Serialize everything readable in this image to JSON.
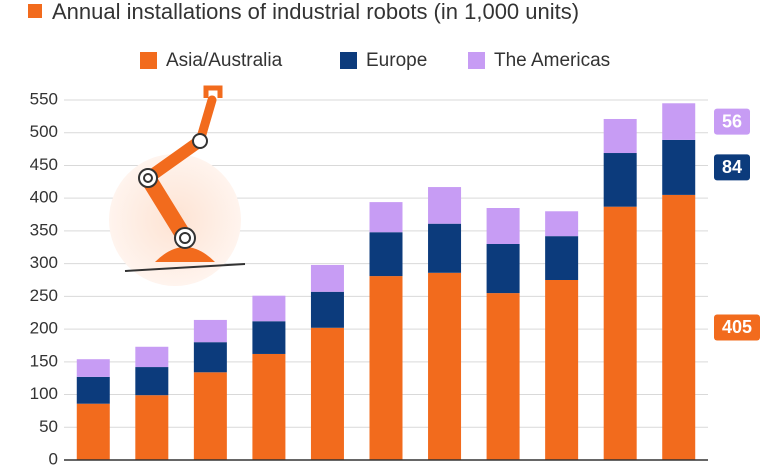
{
  "chart_data": {
    "type": "stacked_bar",
    "title": "Annual installations of industrial robots (in 1,000 units)",
    "categories": [
      null,
      null,
      null,
      null,
      null,
      null,
      null,
      null,
      null,
      null,
      null
    ],
    "series": [
      {
        "name": "Asia/Australia",
        "color": "#f26b1d",
        "values": [
          86,
          99,
          134,
          162,
          202,
          281,
          286,
          255,
          275,
          387,
          405
        ]
      },
      {
        "name": "Europe",
        "color": "#0c3b7c",
        "values": [
          41,
          43,
          46,
          50,
          55,
          67,
          75,
          75,
          67,
          82,
          84
        ]
      },
      {
        "name": "The Americas",
        "color": "#c79cf4",
        "values": [
          27,
          31,
          34,
          39,
          41,
          46,
          56,
          55,
          38,
          52,
          56
        ]
      }
    ],
    "ylim": [
      0,
      550
    ],
    "yticks": [
      0,
      50,
      100,
      150,
      200,
      250,
      300,
      350,
      400,
      450,
      500,
      550
    ],
    "grid": true,
    "legend": "top"
  }
}
